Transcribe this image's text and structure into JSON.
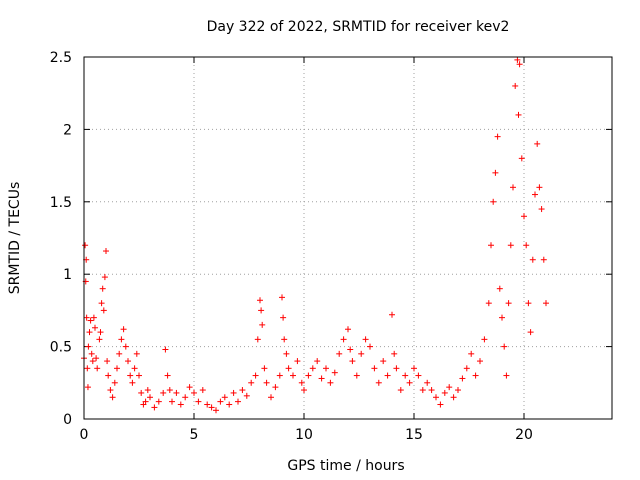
{
  "chart_data": {
    "type": "scatter",
    "title": "Day 322 of 2022, SRMTID for receiver kev2",
    "xlabel": "GPS time / hours",
    "ylabel": "SRMTID / TECUs",
    "xlim": [
      0,
      24
    ],
    "ylim": [
      0,
      2.5
    ],
    "x_ticks": [
      0,
      5,
      10,
      15,
      20
    ],
    "x_tick_labels": [
      "0",
      "5",
      "10",
      "15",
      "20"
    ],
    "y_ticks": [
      0,
      0.5,
      1,
      1.5,
      2,
      2.5
    ],
    "y_tick_labels": [
      "0",
      "0.5",
      "1",
      "1.5",
      "2",
      "2.5"
    ],
    "grid": true,
    "marker": "+",
    "marker_color": "#ff0000",
    "series": [
      {
        "name": "SRMTID",
        "points": [
          [
            0.0,
            0.42
          ],
          [
            0.05,
            1.2
          ],
          [
            0.08,
            0.95
          ],
          [
            0.1,
            1.1
          ],
          [
            0.12,
            0.7
          ],
          [
            0.15,
            0.35
          ],
          [
            0.18,
            0.22
          ],
          [
            0.2,
            0.5
          ],
          [
            0.25,
            0.6
          ],
          [
            0.3,
            0.68
          ],
          [
            0.35,
            0.45
          ],
          [
            0.4,
            0.4
          ],
          [
            0.45,
            0.7
          ],
          [
            0.5,
            0.63
          ],
          [
            0.55,
            0.42
          ],
          [
            0.6,
            0.35
          ],
          [
            0.7,
            0.55
          ],
          [
            0.75,
            0.6
          ],
          [
            0.8,
            0.8
          ],
          [
            0.85,
            0.9
          ],
          [
            0.9,
            0.75
          ],
          [
            0.95,
            0.98
          ],
          [
            1.0,
            1.16
          ],
          [
            1.05,
            0.4
          ],
          [
            1.1,
            0.3
          ],
          [
            1.2,
            0.2
          ],
          [
            1.3,
            0.15
          ],
          [
            1.4,
            0.25
          ],
          [
            1.5,
            0.35
          ],
          [
            1.6,
            0.45
          ],
          [
            1.7,
            0.55
          ],
          [
            1.8,
            0.62
          ],
          [
            1.9,
            0.5
          ],
          [
            2.0,
            0.4
          ],
          [
            2.1,
            0.3
          ],
          [
            2.2,
            0.25
          ],
          [
            2.3,
            0.35
          ],
          [
            2.4,
            0.45
          ],
          [
            2.5,
            0.3
          ],
          [
            2.6,
            0.18
          ],
          [
            2.7,
            0.1
          ],
          [
            2.8,
            0.12
          ],
          [
            2.9,
            0.2
          ],
          [
            3.0,
            0.15
          ],
          [
            3.2,
            0.08
          ],
          [
            3.4,
            0.12
          ],
          [
            3.6,
            0.18
          ],
          [
            3.7,
            0.48
          ],
          [
            3.8,
            0.3
          ],
          [
            3.9,
            0.2
          ],
          [
            4.0,
            0.12
          ],
          [
            4.2,
            0.18
          ],
          [
            4.4,
            0.1
          ],
          [
            4.6,
            0.15
          ],
          [
            4.8,
            0.22
          ],
          [
            5.0,
            0.18
          ],
          [
            5.2,
            0.12
          ],
          [
            5.4,
            0.2
          ],
          [
            5.6,
            0.1
          ],
          [
            5.8,
            0.08
          ],
          [
            6.0,
            0.06
          ],
          [
            6.2,
            0.12
          ],
          [
            6.4,
            0.15
          ],
          [
            6.6,
            0.1
          ],
          [
            6.8,
            0.18
          ],
          [
            7.0,
            0.12
          ],
          [
            7.2,
            0.2
          ],
          [
            7.4,
            0.16
          ],
          [
            7.6,
            0.25
          ],
          [
            7.8,
            0.3
          ],
          [
            7.9,
            0.55
          ],
          [
            8.0,
            0.82
          ],
          [
            8.05,
            0.75
          ],
          [
            8.1,
            0.65
          ],
          [
            8.2,
            0.35
          ],
          [
            8.3,
            0.25
          ],
          [
            8.5,
            0.15
          ],
          [
            8.7,
            0.22
          ],
          [
            8.9,
            0.3
          ],
          [
            9.0,
            0.84
          ],
          [
            9.05,
            0.7
          ],
          [
            9.1,
            0.55
          ],
          [
            9.2,
            0.45
          ],
          [
            9.3,
            0.35
          ],
          [
            9.5,
            0.3
          ],
          [
            9.7,
            0.4
          ],
          [
            9.9,
            0.25
          ],
          [
            10.0,
            0.2
          ],
          [
            10.2,
            0.3
          ],
          [
            10.4,
            0.35
          ],
          [
            10.6,
            0.4
          ],
          [
            10.8,
            0.28
          ],
          [
            11.0,
            0.35
          ],
          [
            11.2,
            0.25
          ],
          [
            11.4,
            0.32
          ],
          [
            11.6,
            0.45
          ],
          [
            11.8,
            0.55
          ],
          [
            12.0,
            0.62
          ],
          [
            12.1,
            0.48
          ],
          [
            12.2,
            0.4
          ],
          [
            12.4,
            0.3
          ],
          [
            12.6,
            0.45
          ],
          [
            12.8,
            0.55
          ],
          [
            13.0,
            0.5
          ],
          [
            13.2,
            0.35
          ],
          [
            13.4,
            0.25
          ],
          [
            13.6,
            0.4
          ],
          [
            13.8,
            0.3
          ],
          [
            14.0,
            0.72
          ],
          [
            14.1,
            0.45
          ],
          [
            14.2,
            0.35
          ],
          [
            14.4,
            0.2
          ],
          [
            14.6,
            0.3
          ],
          [
            14.8,
            0.25
          ],
          [
            15.0,
            0.35
          ],
          [
            15.2,
            0.3
          ],
          [
            15.4,
            0.2
          ],
          [
            15.6,
            0.25
          ],
          [
            15.8,
            0.2
          ],
          [
            16.0,
            0.15
          ],
          [
            16.2,
            0.1
          ],
          [
            16.4,
            0.18
          ],
          [
            16.6,
            0.22
          ],
          [
            16.8,
            0.15
          ],
          [
            17.0,
            0.2
          ],
          [
            17.2,
            0.28
          ],
          [
            17.4,
            0.35
          ],
          [
            17.6,
            0.45
          ],
          [
            17.8,
            0.3
          ],
          [
            18.0,
            0.4
          ],
          [
            18.2,
            0.55
          ],
          [
            18.4,
            0.8
          ],
          [
            18.5,
            1.2
          ],
          [
            18.6,
            1.5
          ],
          [
            18.7,
            1.7
          ],
          [
            18.8,
            1.95
          ],
          [
            18.9,
            0.9
          ],
          [
            19.0,
            0.7
          ],
          [
            19.1,
            0.5
          ],
          [
            19.2,
            0.3
          ],
          [
            19.3,
            0.8
          ],
          [
            19.4,
            1.2
          ],
          [
            19.5,
            1.6
          ],
          [
            19.6,
            2.3
          ],
          [
            19.7,
            2.48
          ],
          [
            19.75,
            2.1
          ],
          [
            19.8,
            2.45
          ],
          [
            19.9,
            1.8
          ],
          [
            20.0,
            1.4
          ],
          [
            20.1,
            1.2
          ],
          [
            20.2,
            0.8
          ],
          [
            20.3,
            0.6
          ],
          [
            20.4,
            1.1
          ],
          [
            20.5,
            1.55
          ],
          [
            20.6,
            1.9
          ],
          [
            20.7,
            1.6
          ],
          [
            20.8,
            1.45
          ],
          [
            20.9,
            1.1
          ],
          [
            21.0,
            0.8
          ]
        ]
      }
    ]
  }
}
